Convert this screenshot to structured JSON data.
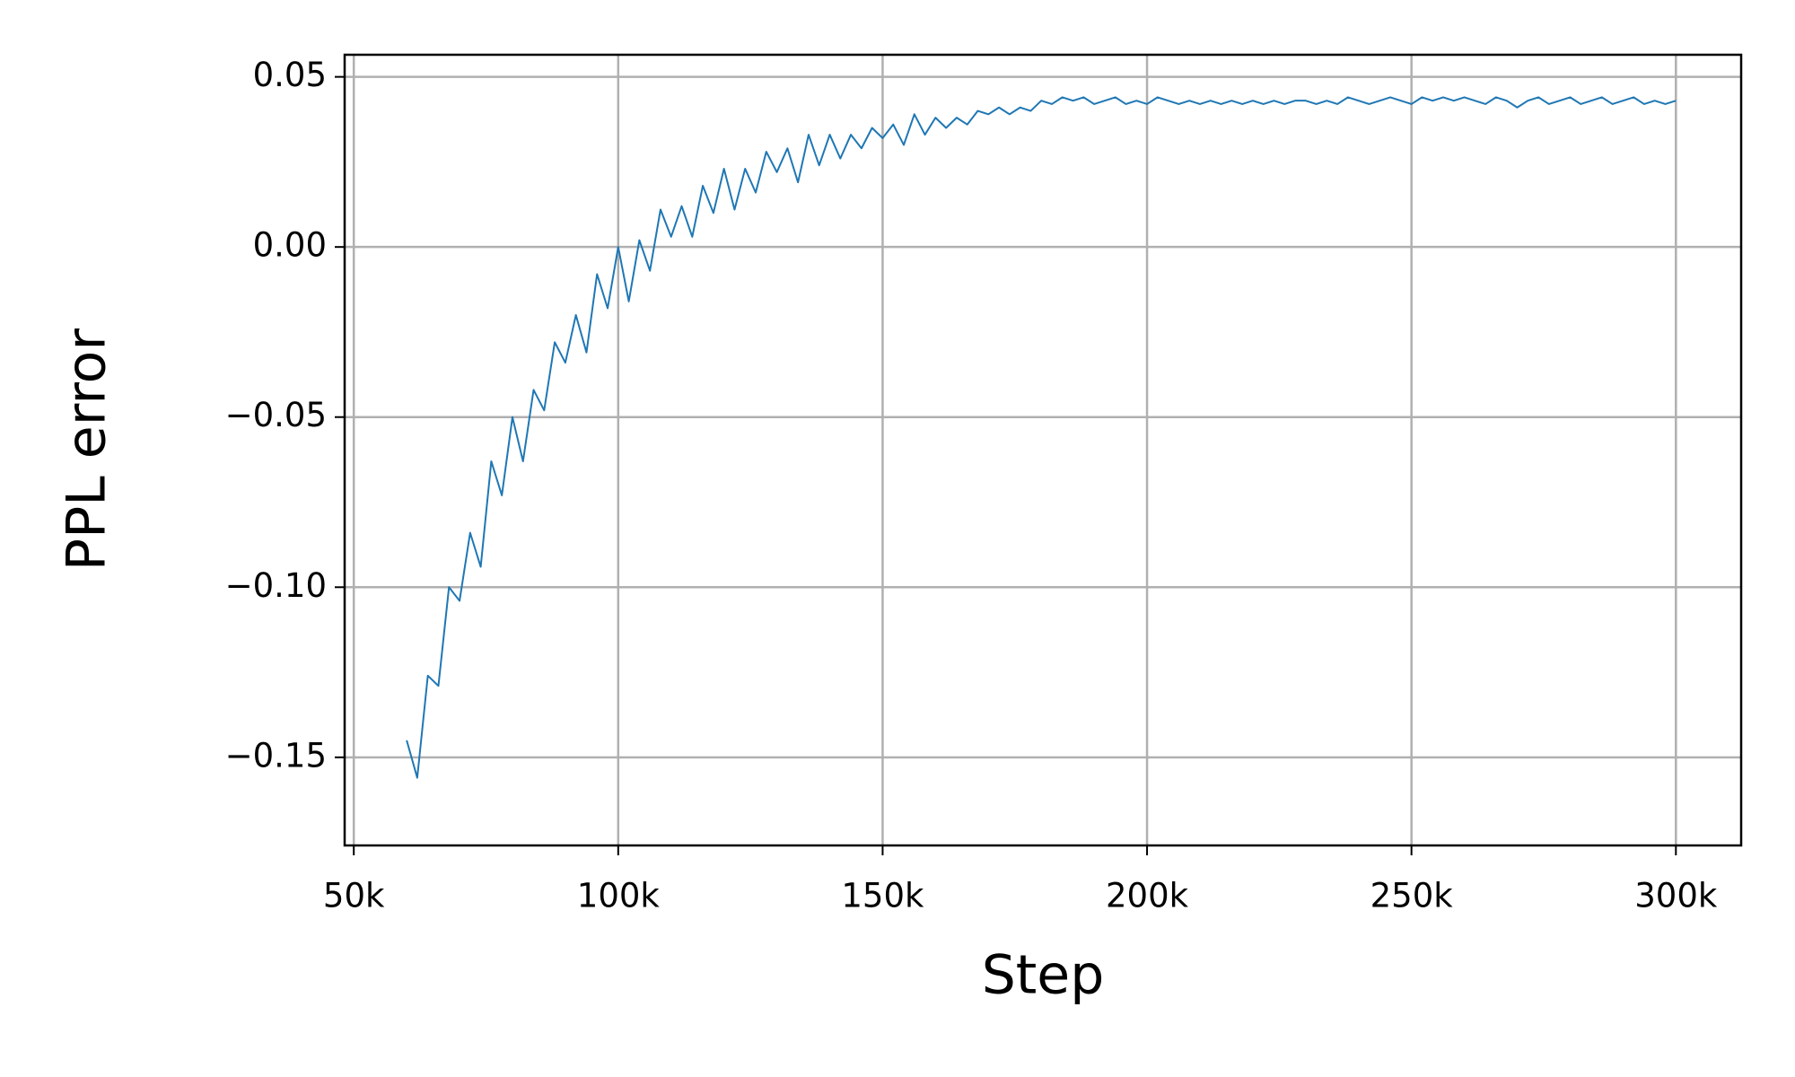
{
  "chart_data": {
    "type": "line",
    "xlabel": "Step",
    "ylabel": "PPL error",
    "color": "#1f77b4",
    "grid": true,
    "x": [
      60000,
      62000,
      64000,
      66000,
      68000,
      70000,
      72000,
      74000,
      76000,
      78000,
      80000,
      82000,
      84000,
      86000,
      88000,
      90000,
      92000,
      94000,
      96000,
      98000,
      100000,
      102000,
      104000,
      106000,
      108000,
      110000,
      112000,
      114000,
      116000,
      118000,
      120000,
      122000,
      124000,
      126000,
      128000,
      130000,
      132000,
      134000,
      136000,
      138000,
      140000,
      142000,
      144000,
      146000,
      148000,
      150000,
      152000,
      154000,
      156000,
      158000,
      160000,
      162000,
      164000,
      166000,
      168000,
      170000,
      172000,
      174000,
      176000,
      178000,
      180000,
      182000,
      184000,
      186000,
      188000,
      190000,
      192000,
      194000,
      196000,
      198000,
      200000,
      202000,
      204000,
      206000,
      208000,
      210000,
      212000,
      214000,
      216000,
      218000,
      220000,
      222000,
      224000,
      226000,
      228000,
      230000,
      232000,
      234000,
      236000,
      238000,
      240000,
      242000,
      244000,
      246000,
      248000,
      250000,
      252000,
      254000,
      256000,
      258000,
      260000,
      262000,
      264000,
      266000,
      268000,
      270000,
      272000,
      274000,
      276000,
      278000,
      280000,
      282000,
      284000,
      286000,
      288000,
      290000,
      292000,
      294000,
      296000,
      298000,
      300000
    ],
    "values": [
      -0.145,
      -0.156,
      -0.126,
      -0.129,
      -0.1,
      -0.104,
      -0.084,
      -0.094,
      -0.063,
      -0.073,
      -0.05,
      -0.063,
      -0.042,
      -0.048,
      -0.028,
      -0.034,
      -0.02,
      -0.031,
      -0.008,
      -0.018,
      0.0,
      -0.016,
      0.002,
      -0.007,
      0.011,
      0.003,
      0.012,
      0.003,
      0.018,
      0.01,
      0.023,
      0.011,
      0.023,
      0.016,
      0.028,
      0.022,
      0.029,
      0.019,
      0.033,
      0.024,
      0.033,
      0.026,
      0.033,
      0.029,
      0.035,
      0.032,
      0.036,
      0.03,
      0.039,
      0.033,
      0.038,
      0.035,
      0.038,
      0.036,
      0.04,
      0.039,
      0.041,
      0.039,
      0.041,
      0.04,
      0.043,
      0.042,
      0.044,
      0.043,
      0.044,
      0.042,
      0.043,
      0.044,
      0.042,
      0.043,
      0.042,
      0.044,
      0.043,
      0.042,
      0.043,
      0.042,
      0.043,
      0.042,
      0.043,
      0.042,
      0.043,
      0.042,
      0.043,
      0.042,
      0.043,
      0.043,
      0.042,
      0.043,
      0.042,
      0.044,
      0.043,
      0.042,
      0.043,
      0.044,
      0.043,
      0.042,
      0.044,
      0.043,
      0.044,
      0.043,
      0.044,
      0.043,
      0.042,
      0.044,
      0.043,
      0.041,
      0.043,
      0.044,
      0.042,
      0.043,
      0.044,
      0.042,
      0.043,
      0.044,
      0.042,
      0.043,
      0.044,
      0.042,
      0.043,
      0.042,
      0.043
    ],
    "xlim": [
      48270,
      312340
    ],
    "xticks": [
      {
        "value": 50000,
        "label": "50k"
      },
      {
        "value": 100000,
        "label": "100k"
      },
      {
        "value": 150000,
        "label": "150k"
      },
      {
        "value": 200000,
        "label": "200k"
      },
      {
        "value": 250000,
        "label": "250k"
      },
      {
        "value": 300000,
        "label": "300k"
      }
    ],
    "ylim": [
      -0.1759,
      0.0565
    ],
    "yticks": [
      {
        "value": -0.15,
        "label": "−0.15"
      },
      {
        "value": -0.1,
        "label": "−0.10"
      },
      {
        "value": -0.05,
        "label": "−0.05"
      },
      {
        "value": 0,
        "label": "0.00"
      },
      {
        "value": 0.05,
        "label": "0.05"
      }
    ]
  }
}
